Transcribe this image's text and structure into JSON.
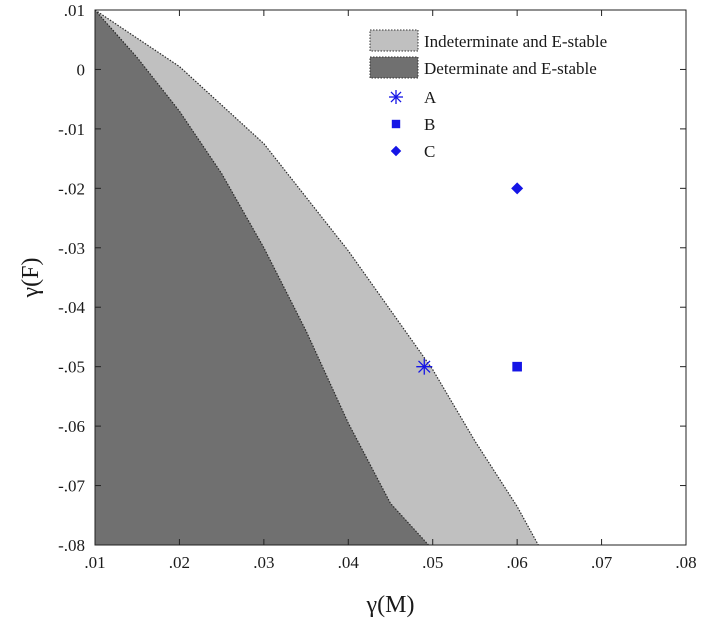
{
  "chart_data": {
    "type": "area",
    "xlabel": "γ(M)",
    "ylabel": "γ(F)",
    "xlim": [
      0.01,
      0.08
    ],
    "ylim": [
      -0.08,
      0.01
    ],
    "x_ticks": [
      0.01,
      0.02,
      0.03,
      0.04,
      0.05,
      0.06,
      0.07,
      0.08
    ],
    "x_tick_labels": [
      ".01",
      ".02",
      ".03",
      ".04",
      ".05",
      ".06",
      ".07",
      ".08"
    ],
    "y_ticks": [
      0.01,
      0,
      -0.01,
      -0.02,
      -0.03,
      -0.04,
      -0.05,
      -0.06,
      -0.07,
      -0.08
    ],
    "y_tick_labels": [
      ".01",
      "0",
      "-.01",
      "-.02",
      "-.03",
      "-.04",
      "-.05",
      "-.06",
      "-.07",
      "-.08"
    ],
    "grid": false,
    "legend_position": "top-right",
    "regions": [
      {
        "name": "Indeterminate and E-stable",
        "color": "#c0c0c0",
        "boundary": [
          [
            0.01,
            0.01
          ],
          [
            0.02,
            0.0005
          ],
          [
            0.03,
            -0.0125
          ],
          [
            0.04,
            -0.0305
          ],
          [
            0.05,
            -0.0505
          ],
          [
            0.055,
            -0.0625
          ],
          [
            0.06,
            -0.0735
          ],
          [
            0.0625,
            -0.08
          ]
        ]
      },
      {
        "name": "Determinate and E-stable",
        "color": "#707070",
        "boundary": [
          [
            0.01,
            0.01
          ],
          [
            0.015,
            0.002
          ],
          [
            0.02,
            -0.007
          ],
          [
            0.025,
            -0.0175
          ],
          [
            0.03,
            -0.03
          ],
          [
            0.035,
            -0.044
          ],
          [
            0.04,
            -0.0595
          ],
          [
            0.045,
            -0.073
          ],
          [
            0.0495,
            -0.08
          ]
        ]
      }
    ],
    "points": [
      {
        "name": "A",
        "x": 0.049,
        "y": -0.05,
        "marker": "asterisk",
        "color": "#1515e6"
      },
      {
        "name": "B",
        "x": 0.06,
        "y": -0.05,
        "marker": "square",
        "color": "#1515e6"
      },
      {
        "name": "C",
        "x": 0.06,
        "y": -0.02,
        "marker": "diamond",
        "color": "#1515e6"
      }
    ]
  }
}
